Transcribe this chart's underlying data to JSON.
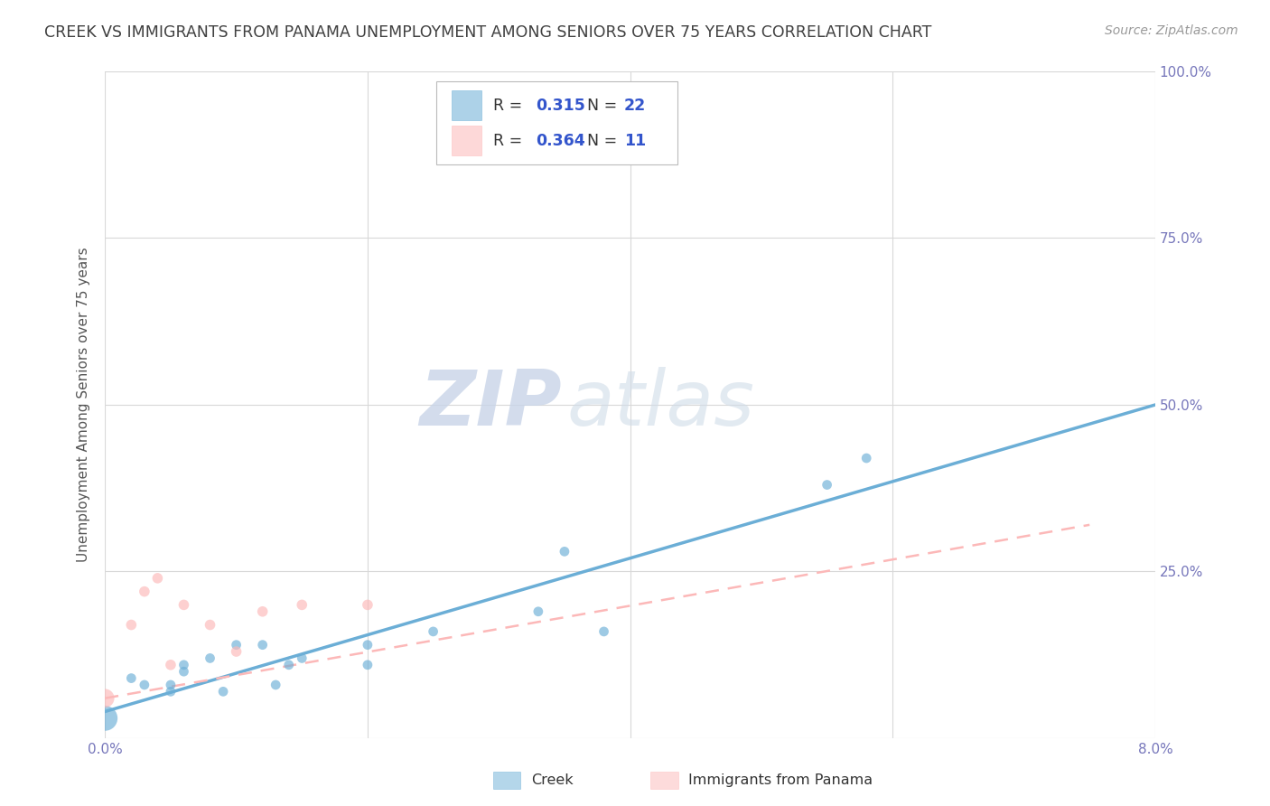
{
  "title": "CREEK VS IMMIGRANTS FROM PANAMA UNEMPLOYMENT AMONG SENIORS OVER 75 YEARS CORRELATION CHART",
  "source": "Source: ZipAtlas.com",
  "ylabel": "Unemployment Among Seniors over 75 years",
  "x_min": 0.0,
  "x_max": 0.08,
  "y_min": 0.0,
  "y_max": 1.0,
  "x_ticks": [
    0.0,
    0.02,
    0.04,
    0.06,
    0.08
  ],
  "x_tick_labels": [
    "0.0%",
    "",
    "",
    "",
    "8.0%"
  ],
  "y_ticks": [
    0.0,
    0.25,
    0.5,
    0.75,
    1.0
  ],
  "y_tick_labels": [
    "",
    "25.0%",
    "50.0%",
    "75.0%",
    "100.0%"
  ],
  "creek_color": "#6baed6",
  "panama_color": "#fcb8b8",
  "creek_R": 0.315,
  "creek_N": 22,
  "panama_R": 0.364,
  "panama_N": 11,
  "creek_x": [
    0.0,
    0.002,
    0.003,
    0.005,
    0.005,
    0.006,
    0.006,
    0.008,
    0.009,
    0.01,
    0.012,
    0.013,
    0.014,
    0.015,
    0.02,
    0.02,
    0.025,
    0.033,
    0.035,
    0.038,
    0.055,
    0.058
  ],
  "creek_y": [
    0.03,
    0.09,
    0.08,
    0.07,
    0.08,
    0.1,
    0.11,
    0.12,
    0.07,
    0.14,
    0.14,
    0.08,
    0.11,
    0.12,
    0.14,
    0.11,
    0.16,
    0.19,
    0.28,
    0.16,
    0.38,
    0.42
  ],
  "panama_x": [
    0.0,
    0.002,
    0.003,
    0.004,
    0.005,
    0.006,
    0.008,
    0.01,
    0.012,
    0.015,
    0.02
  ],
  "panama_y": [
    0.06,
    0.17,
    0.22,
    0.24,
    0.11,
    0.2,
    0.17,
    0.13,
    0.19,
    0.2,
    0.2
  ],
  "creek_line_x": [
    0.0,
    0.08
  ],
  "creek_line_y": [
    0.04,
    0.5
  ],
  "panama_line_x": [
    0.0,
    0.075
  ],
  "panama_line_y": [
    0.06,
    0.32
  ],
  "watermark_zip": "ZIP",
  "watermark_atlas": "atlas",
  "bg_color": "#ffffff",
  "grid_color": "#d8d8d8",
  "title_color": "#404040",
  "axis_label_color": "#555555",
  "tick_label_color": "#7777bb",
  "r_n_color": "#3355cc",
  "label_color": "#333333"
}
